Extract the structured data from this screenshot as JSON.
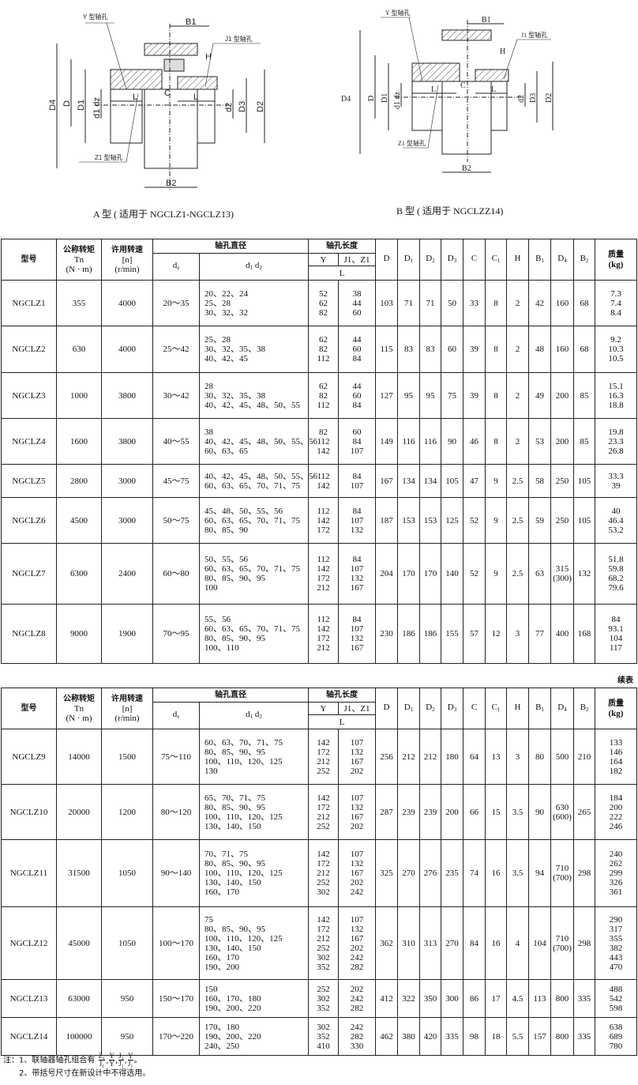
{
  "drawing_a": {
    "caption": "A 型 ( 适用于 NGCLZ1-NGCLZ13)",
    "labels": {
      "y_bore": "Y 型轴孔",
      "j1_bore": "J1 型轴孔",
      "z1_bore": "Z1 型轴孔",
      "B1": "B1",
      "B2": "B2",
      "H": "H",
      "C": "C",
      "L": "L",
      "D4": "D4",
      "D": "D",
      "D1": "D1",
      "d1dz": "d1 dz",
      "d2": "d2",
      "D3": "D3",
      "D2": "D2"
    }
  },
  "drawing_b": {
    "caption": "B 型 ( 适用于 NGCLZZ14)",
    "labels": {
      "y_bore": "Y 型轴孔",
      "j1_bore": "J1 型轴孔",
      "z1_bore": "Z1 型轴孔",
      "B1": "B1",
      "B2": "B2",
      "H": "H",
      "C": "C",
      "L": "L",
      "D4": "D4",
      "D": "D",
      "D1": "D1",
      "d1dz": "d1 dz",
      "d2": "d2",
      "D3": "D3",
      "D2": "D2"
    }
  },
  "header": {
    "model": "型号",
    "torque": "公称转矩",
    "torque_sym": "Tn",
    "torque_unit": "(N · m)",
    "speed": "许用转速",
    "speed_sym": "[n]",
    "speed_unit": "(r/min)",
    "bore_dia": "轴孔直径",
    "dz": "d",
    "dz_sub": "z",
    "d1d2": "d",
    "d1_sub": "1",
    "d2": "d",
    "d2_sub": "2",
    "bore_len": "轴孔长度",
    "Y": "Y",
    "J1Z1": "J1、Z1",
    "L": "L",
    "dims": [
      {
        "b": "D",
        "s": ""
      },
      {
        "b": "D",
        "s": "1"
      },
      {
        "b": "D",
        "s": "2"
      },
      {
        "b": "D",
        "s": "3"
      },
      {
        "b": "C",
        "s": ""
      },
      {
        "b": "C",
        "s": "1"
      },
      {
        "b": "H",
        "s": ""
      },
      {
        "b": "B",
        "s": "1"
      },
      {
        "b": "D",
        "s": "4"
      },
      {
        "b": "B",
        "s": "2"
      }
    ],
    "mass": "质量",
    "mass_unit": "(kg)"
  },
  "continued_label": "续表",
  "table1": [
    {
      "model": "NGCLZ1",
      "tn": "355",
      "n": "4000",
      "dz": "20～35",
      "d12": "20、22、24\n25、28\n30、32、32",
      "Y": "52\n62\n82",
      "J1": "38\n44\n60",
      "dims": [
        "103",
        "71",
        "71",
        "50",
        "33",
        "8",
        "2",
        "42",
        "160",
        "68"
      ],
      "mass": "7.3\n7.4\n8.4"
    },
    {
      "model": "NGCLZ2",
      "tn": "630",
      "n": "4000",
      "dz": "25～42",
      "d12": "25、28\n30、32、35、38\n40、42、45",
      "Y": "62\n82\n112",
      "J1": "44\n60\n84",
      "dims": [
        "115",
        "83",
        "83",
        "60",
        "39",
        "8",
        "2",
        "48",
        "160",
        "68"
      ],
      "mass": "9.2\n10.3\n10.5"
    },
    {
      "model": "NGCLZ3",
      "tn": "1000",
      "n": "3800",
      "dz": "30～42",
      "d12": "28\n30、32、35、38\n40、42、45、48、50、55",
      "Y": "62\n82\n112",
      "J1": "44\n60\n84",
      "dims": [
        "127",
        "95",
        "95",
        "75",
        "39",
        "8",
        "2",
        "49",
        "200",
        "85"
      ],
      "mass": "15.1\n16.3\n18.8"
    },
    {
      "model": "NGCLZ4",
      "tn": "1600",
      "n": "3800",
      "dz": "40～55",
      "d12": "38\n40、42、45、48、50、55、56\n60、63、65",
      "Y": "82\n112\n142",
      "J1": "60\n84\n107",
      "dims": [
        "149",
        "116",
        "116",
        "90",
        "46",
        "8",
        "2",
        "53",
        "200",
        "85"
      ],
      "mass": "19.8\n23.3\n26.8"
    },
    {
      "model": "NGCLZ5",
      "tn": "2800",
      "n": "3000",
      "dz": "45～75",
      "d12": "40、42、45、48、50、55、56\n60、63、65、70、71、75",
      "Y": "112\n142",
      "J1": "84\n107",
      "dims": [
        "167",
        "134",
        "134",
        "105",
        "47",
        "9",
        "2.5",
        "58",
        "250",
        "105"
      ],
      "mass": "33.3\n39"
    },
    {
      "model": "NGCLZ6",
      "tn": "4500",
      "n": "3000",
      "dz": "50～75",
      "d12": "45、48、50、55、56\n60、63、65、70、71、75\n80、85、90",
      "Y": "112\n142\n172",
      "J1": "84\n107\n132",
      "dims": [
        "187",
        "153",
        "153",
        "125",
        "52",
        "9",
        "2.5",
        "59",
        "250",
        "105"
      ],
      "mass": "40\n46.4\n53.2"
    },
    {
      "model": "NGCLZ7",
      "tn": "6300",
      "n": "2400",
      "dz": "60～80",
      "d12": "50、55、56\n60、63、65、70、71、75\n80、85、90、95\n100",
      "Y": "112\n142\n172\n212",
      "J1": "84\n107\n132\n167",
      "dims": [
        "204",
        "170",
        "170",
        "140",
        "52",
        "9",
        "2.5",
        "63",
        "315\n(300)",
        "132"
      ],
      "mass": "51.8\n59.8\n68.2\n79.6"
    },
    {
      "model": "NGCLZ8",
      "tn": "9000",
      "n": "1900",
      "dz": "70～95",
      "d12": "55、56\n60、63、65、70、71、75\n80、85、90、95\n100、110",
      "Y": "112\n142\n172\n212",
      "J1": "84\n107\n132\n167",
      "dims": [
        "230",
        "186",
        "186",
        "155",
        "57",
        "12",
        "3",
        "77",
        "400",
        "168"
      ],
      "mass": "84\n93.1\n104\n117"
    }
  ],
  "table2": [
    {
      "model": "NGCLZ9",
      "tn": "14000",
      "n": "1500",
      "dz": "75～110",
      "d12": "60、63、70、71、75\n80、85、90、95\n100、110、120、125\n130",
      "Y": "142\n172\n212\n252",
      "J1": "107\n132\n167\n202",
      "dims": [
        "256",
        "212",
        "212",
        "180",
        "64",
        "13",
        "3",
        "80",
        "500",
        "210"
      ],
      "mass": "133\n146\n164\n182"
    },
    {
      "model": "NGCLZ10",
      "tn": "20000",
      "n": "1200",
      "dz": "80～120",
      "d12": "65、70、71、75\n80、85、90、95\n100、110、120、125\n130、140、150",
      "Y": "142\n172\n212\n252",
      "J1": "107\n132\n167\n202",
      "dims": [
        "287",
        "239",
        "239",
        "200",
        "66",
        "15",
        "3.5",
        "90",
        "630\n(600)",
        "265"
      ],
      "mass": "184\n200\n222\n246"
    },
    {
      "model": "NGCLZ11",
      "tn": "31500",
      "n": "1050",
      "dz": "90～140",
      "d12": "70、71、75\n80、85、90、95\n100、110、120、125\n130、140、150\n160、170",
      "Y": "142\n172\n212\n252\n302",
      "J1": "107\n132\n167\n202\n242",
      "dims": [
        "325",
        "270",
        "276",
        "235",
        "74",
        "16",
        "3.5",
        "94",
        "710\n(700)",
        "298"
      ],
      "mass": "240\n262\n299\n326\n361"
    },
    {
      "model": "NGCLZ12",
      "tn": "45000",
      "n": "1050",
      "dz": "100～170",
      "d12": "75\n80、85、90、95\n100、110、120、125\n130、140、150\n160、170\n190、200",
      "Y": "142\n172\n212\n252\n302\n352",
      "J1": "107\n132\n167\n202\n242\n282",
      "dims": [
        "362",
        "310",
        "313",
        "270",
        "84",
        "16",
        "4",
        "104",
        "710\n(700)",
        "298"
      ],
      "mass": "290\n317\n355\n382\n443\n470"
    },
    {
      "model": "NGCLZ13",
      "tn": "63000",
      "n": "950",
      "dz": "150～170",
      "d12": "150\n160、170、180\n190、200、220",
      "Y": "252\n302\n352",
      "J1": "202\n242\n282",
      "dims": [
        "412",
        "322",
        "350",
        "300",
        "86",
        "17",
        "4.5",
        "113",
        "800",
        "335"
      ],
      "mass": "488\n542\n598"
    },
    {
      "model": "NGCLZ14",
      "tn": "100000",
      "n": "950",
      "dz": "170～220",
      "d12": "170、180\n190、200、220\n240、250",
      "Y": "302\n352\n410",
      "J1": "242\n282\n330",
      "dims": [
        "462",
        "380",
        "420",
        "335",
        "98",
        "18",
        "5.5",
        "157",
        "800",
        "335"
      ],
      "mass": "638\n689\n780"
    }
  ],
  "notes": {
    "note1_prefix": "注：1、联轴器轴孔组合有",
    "fractions": [
      {
        "num": "Z₁",
        "den": "J₁"
      },
      {
        "num": "Y",
        "den": "Y"
      },
      {
        "num": "J₁",
        "den": "J₁"
      },
      {
        "num": "Y",
        "den": "J₁"
      }
    ],
    "note1_suffix": "。",
    "note2": "2、带括号尺寸在新设计中不得选用。"
  }
}
